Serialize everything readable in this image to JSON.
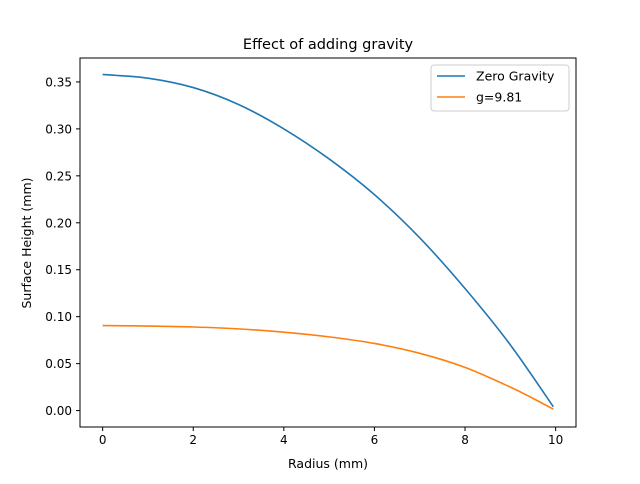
{
  "chart_data": {
    "type": "line",
    "title": "Effect of adding gravity",
    "xlabel": "Radius (mm)",
    "ylabel": "Surface Height (mm)",
    "xlim": [
      -0.5,
      10.45
    ],
    "ylim": [
      -0.0175,
      0.3755
    ],
    "xticks": [
      0,
      2,
      4,
      6,
      8,
      10
    ],
    "xtick_labels": [
      "0",
      "2",
      "4",
      "6",
      "8",
      "10"
    ],
    "yticks": [
      0.0,
      0.05,
      0.1,
      0.15,
      0.2,
      0.25,
      0.3,
      0.35
    ],
    "ytick_labels": [
      "0.00",
      "0.05",
      "0.10",
      "0.15",
      "0.20",
      "0.25",
      "0.30",
      "0.35"
    ],
    "grid": false,
    "legend_position": "top-right",
    "series": [
      {
        "name": "Zero Gravity",
        "color": "#1f77b4",
        "x": [
          0,
          1,
          2,
          3,
          4,
          5,
          6,
          7,
          8,
          9,
          9.95
        ],
        "y": [
          0.358,
          0.354,
          0.344,
          0.326,
          0.3,
          0.268,
          0.23,
          0.184,
          0.13,
          0.07,
          0.004
        ]
      },
      {
        "name": "g=9.81",
        "color": "#ff7f0e",
        "x": [
          0,
          1,
          2,
          3,
          4,
          5,
          6,
          7,
          8,
          9,
          9.5,
          9.95
        ],
        "y": [
          0.0905,
          0.09,
          0.089,
          0.087,
          0.0835,
          0.0785,
          0.0715,
          0.061,
          0.046,
          0.025,
          0.013,
          0.0015
        ]
      }
    ]
  }
}
